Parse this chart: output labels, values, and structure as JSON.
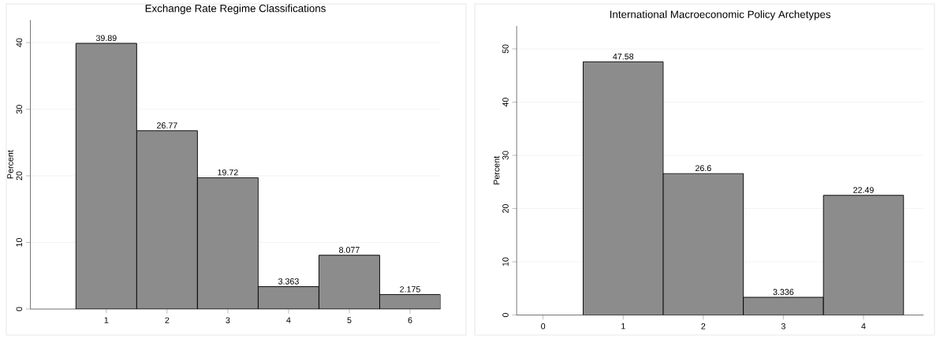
{
  "chart_data": [
    {
      "type": "histogram",
      "title": "Exchange Rate Regime Classifications",
      "ylabel": "Percent",
      "bins": [
        0.5,
        1.5,
        2.5,
        3.5,
        4.5,
        5.5,
        6.5
      ],
      "values": [
        39.89,
        26.77,
        19.72,
        3.363,
        8.077,
        2.175
      ],
      "color": "#8c8c8c",
      "xlim": [
        -0.25,
        6.5
      ],
      "ylim": [
        0,
        43.4
      ],
      "xticks": [
        1,
        2,
        3,
        4,
        5,
        6
      ],
      "yticks": [
        0,
        10,
        20,
        30,
        40
      ],
      "grid": "y",
      "data_labels": true
    },
    {
      "type": "histogram",
      "title": "International Macroeconomic Policy Archetypes",
      "ylabel": "Percent",
      "bins": [
        0.5,
        1.5,
        2.5,
        3.5,
        4.5
      ],
      "values": [
        47.58,
        26.6,
        3.336,
        22.49
      ],
      "color": "#8c8c8c",
      "xlim": [
        -0.33,
        4.75
      ],
      "ylim": [
        0,
        54.3
      ],
      "xticks": [
        0,
        1,
        2,
        3,
        4
      ],
      "yticks": [
        0,
        10,
        20,
        30,
        40,
        50
      ],
      "grid": "y",
      "data_labels": true
    }
  ]
}
